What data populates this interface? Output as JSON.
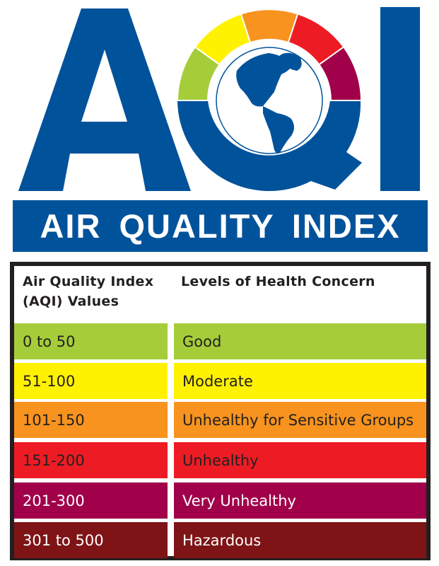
{
  "logo": {
    "letters": "AQI",
    "brand_color": "#00529b",
    "gauge_colors": [
      "#a5cd39",
      "#fff200",
      "#f7931e",
      "#ed1c24",
      "#a1004a"
    ]
  },
  "banner": {
    "title": "AIR QUALITY INDEX"
  },
  "table": {
    "header_values": "Air Quality Index",
    "header_values_2": "(AQI) Values",
    "header_levels": "Levels of Health Concern",
    "rows": [
      {
        "range": "0 to 50",
        "level": "Good",
        "color": "#a5cd39",
        "text_color": "#231f20"
      },
      {
        "range": "51-100",
        "level": "Moderate",
        "color": "#fff200",
        "text_color": "#231f20"
      },
      {
        "range": "101-150",
        "level": "Unhealthy for Sensitive Groups",
        "color": "#f7931e",
        "text_color": "#231f20"
      },
      {
        "range": "151-200",
        "level": "Unhealthy",
        "color": "#ed1c24",
        "text_color": "#231f20"
      },
      {
        "range": "201-300",
        "level": "Very Unhealthy",
        "color": "#a1004a",
        "text_color": "#ffffff"
      },
      {
        "range": "301 to 500",
        "level": "Hazardous",
        "color": "#7e1416",
        "text_color": "#ffffff"
      }
    ]
  }
}
